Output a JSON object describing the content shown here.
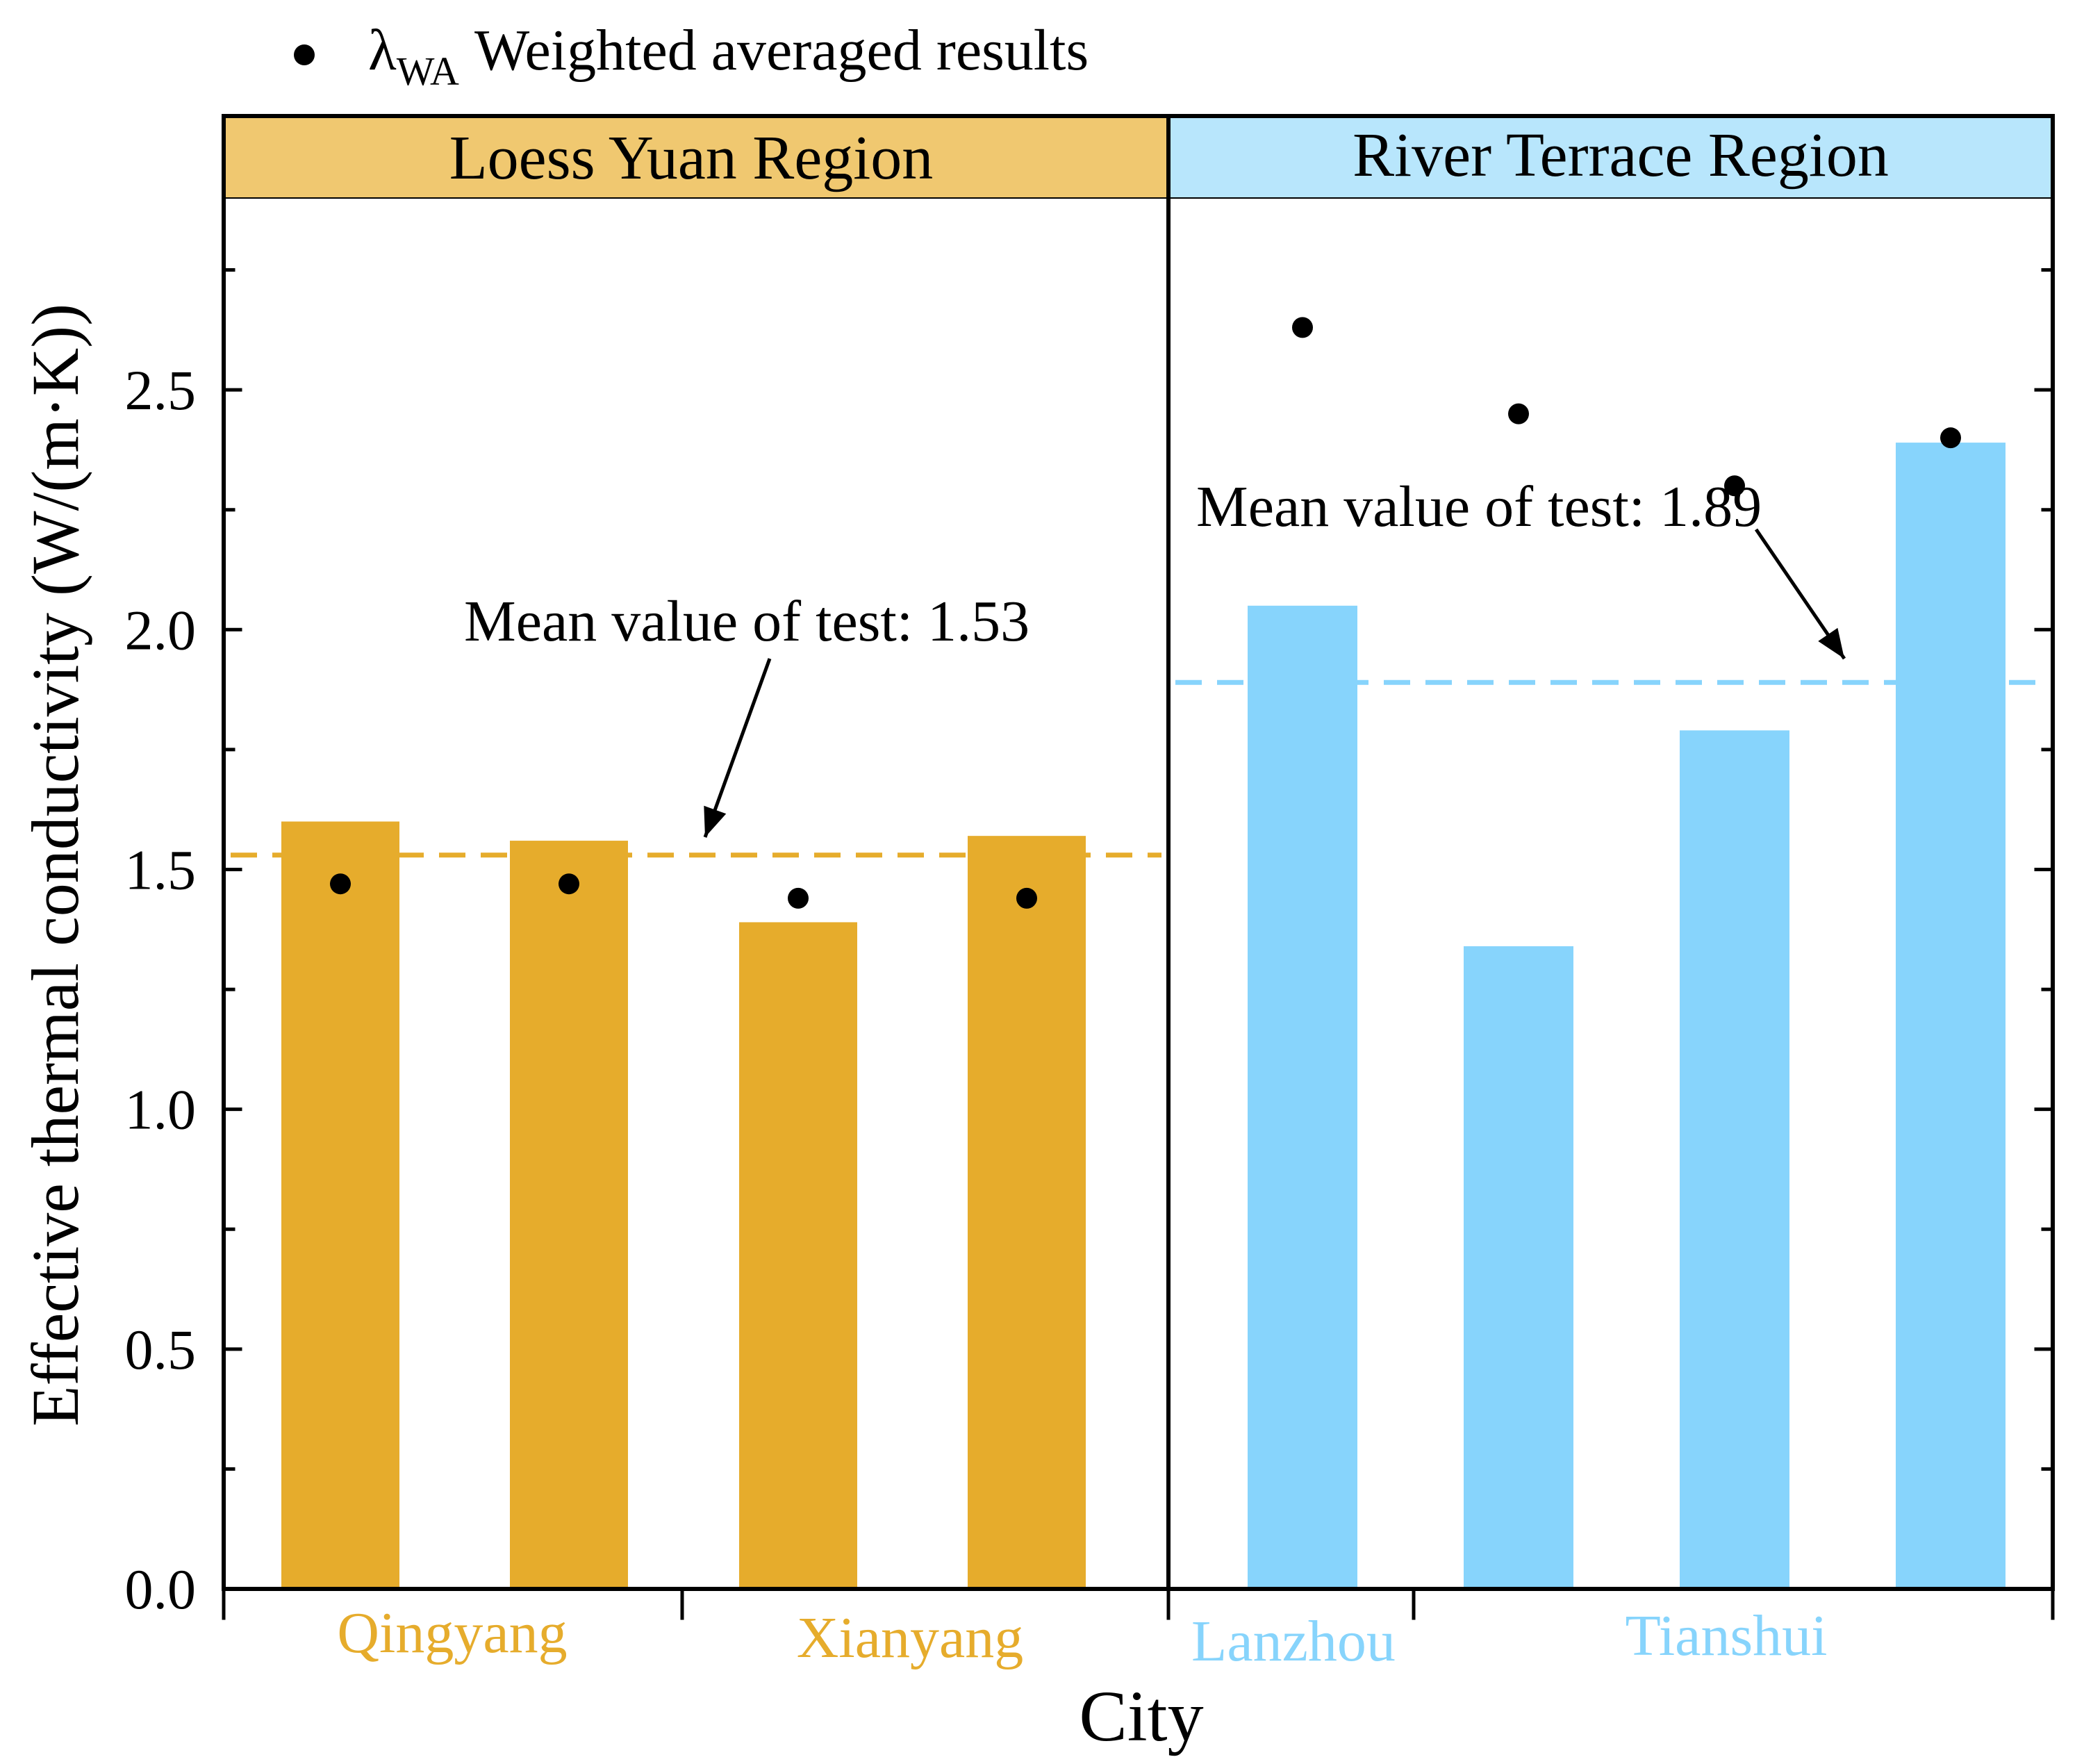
{
  "chart_data": {
    "type": "bar",
    "xlabel": "City",
    "ylabel": "Effective thermal conductivity (W/(m·K))",
    "ylim": [
      0,
      2.9
    ],
    "yticks": [
      "0.0",
      "0.5",
      "1.0",
      "1.5",
      "2.0",
      "2.5"
    ],
    "ytick_values": [
      0,
      0.5,
      1.0,
      1.5,
      2.0,
      2.5
    ],
    "legend": {
      "symbol": "λ",
      "subscript": "WA",
      "label": "Weighted averaged results",
      "position": "top-left"
    },
    "panels": [
      {
        "title": "Loess Yuan Region",
        "header_color": "#F0C870",
        "bar_color": "#E6AC2C",
        "mean": {
          "value": 1.53,
          "label": "Mean value of test: 1.53"
        },
        "cities": [
          {
            "name": "Qingyang",
            "bars": 2
          },
          {
            "name": "Xianyang",
            "bars": 2
          }
        ],
        "bar_values": [
          1.6,
          1.56,
          1.39,
          1.57
        ],
        "weighted_values": [
          1.47,
          1.47,
          1.44,
          1.44
        ]
      },
      {
        "title": "River Terrace Region",
        "header_color": "#B8E6FC",
        "bar_color": "#87D4FC",
        "mean": {
          "value": 1.89,
          "label": "Mean value of test: 1.89"
        },
        "cities": [
          {
            "name": "Lanzhou",
            "bars": 2
          },
          {
            "name": "Tianshui",
            "bars": 2
          }
        ],
        "bar_values": [
          2.05,
          1.34,
          1.79,
          2.39
        ],
        "weighted_values": [
          2.63,
          2.45,
          2.3,
          2.4
        ]
      }
    ]
  }
}
